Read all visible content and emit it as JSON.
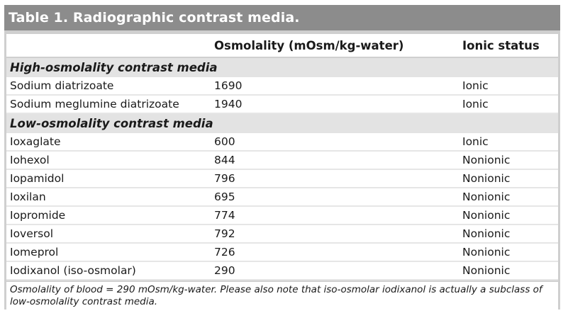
{
  "table": {
    "title": "Table 1. Radiographic contrast media.",
    "headers": [
      "",
      "Osmolality (mOsm/kg-water)",
      "Ionic status"
    ],
    "sections": [
      {
        "label": "High-osmolality contrast media",
        "rows": [
          {
            "name": "Sodium diatrizoate",
            "osmolality": "1690",
            "ionic": "Ionic"
          },
          {
            "name": "Sodium meglumine diatrizoate",
            "osmolality": "1940",
            "ionic": "Ionic"
          }
        ]
      },
      {
        "label": "Low-osmolality contrast media",
        "rows": [
          {
            "name": "Ioxaglate",
            "osmolality": "600",
            "ionic": "Ionic"
          },
          {
            "name": "Iohexol",
            "osmolality": "844",
            "ionic": "Nonionic"
          },
          {
            "name": "Iopamidol",
            "osmolality": "796",
            "ionic": "Nonionic"
          },
          {
            "name": "Ioxilan",
            "osmolality": "695",
            "ionic": "Nonionic"
          },
          {
            "name": "Iopromide",
            "osmolality": "774",
            "ionic": "Nonionic"
          },
          {
            "name": "Ioversol",
            "osmolality": "792",
            "ionic": "Nonionic"
          },
          {
            "name": "Iomeprol",
            "osmolality": "726",
            "ionic": "Nonionic"
          },
          {
            "name": "Iodixanol (iso-osmolar)",
            "osmolality": "290",
            "ionic": "Nonionic"
          }
        ]
      }
    ],
    "footnote_line1": "Osmolality of blood = 290 mOsm/kg-water. Please also note that iso-osmolar iodixanol is actually a subclass of",
    "footnote_line2": "low-osmolality contrast media."
  }
}
